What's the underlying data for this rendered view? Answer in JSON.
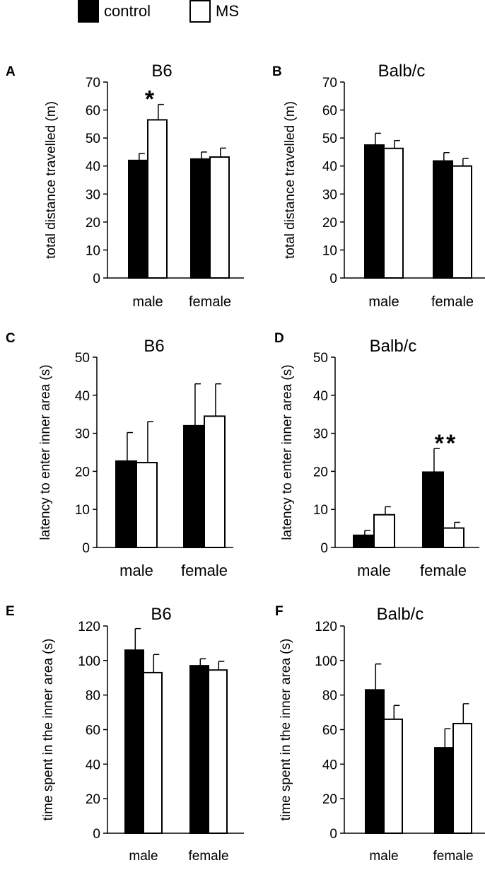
{
  "legend": {
    "control": {
      "label": "control",
      "color": "#000000"
    },
    "ms": {
      "label": "MS",
      "color": "#ffffff"
    }
  },
  "chart_data": [
    {
      "type": "bar",
      "panel_label": "A",
      "title": "B6",
      "ylabel": "total distance travelled (m)",
      "xlabel": "",
      "categories": [
        "male",
        "female"
      ],
      "ylim": [
        0,
        70
      ],
      "yticks": [
        0,
        10,
        20,
        30,
        40,
        50,
        60,
        70
      ],
      "series": [
        {
          "name": "control",
          "values": [
            42,
            42.5
          ],
          "errors": [
            2.5,
            2.5
          ]
        },
        {
          "name": "MS",
          "values": [
            56.5,
            43.2
          ],
          "errors": [
            5.5,
            3.2
          ]
        }
      ],
      "annotations": [
        {
          "text": "*",
          "category": "male"
        }
      ]
    },
    {
      "type": "bar",
      "panel_label": "B",
      "title": "Balb/c",
      "ylabel": "total distance travelled (m)",
      "xlabel": "",
      "categories": [
        "male",
        "female"
      ],
      "ylim": [
        0,
        70
      ],
      "yticks": [
        0,
        10,
        20,
        30,
        40,
        50,
        60,
        70
      ],
      "series": [
        {
          "name": "control",
          "values": [
            47.5,
            41.8
          ],
          "errors": [
            4.2,
            3.0
          ]
        },
        {
          "name": "MS",
          "values": [
            46.3,
            40.0
          ],
          "errors": [
            2.8,
            2.7
          ]
        }
      ],
      "annotations": []
    },
    {
      "type": "bar",
      "panel_label": "C",
      "title": "B6",
      "ylabel": "latency to enter inner area (s)",
      "xlabel": "",
      "categories": [
        "male",
        "female"
      ],
      "ylim": [
        0,
        50
      ],
      "yticks": [
        0,
        10,
        20,
        30,
        40,
        50
      ],
      "series": [
        {
          "name": "control",
          "values": [
            22.7,
            32.0
          ],
          "errors": [
            7.5,
            11.0
          ]
        },
        {
          "name": "MS",
          "values": [
            22.3,
            34.5
          ],
          "errors": [
            10.8,
            8.5
          ]
        }
      ],
      "annotations": []
    },
    {
      "type": "bar",
      "panel_label": "D",
      "title": "Balb/c",
      "ylabel": "latency to enter inner area (s)",
      "xlabel": "",
      "categories": [
        "male",
        "female"
      ],
      "ylim": [
        0,
        50
      ],
      "yticks": [
        0,
        10,
        20,
        30,
        40,
        50
      ],
      "series": [
        {
          "name": "control",
          "values": [
            3.2,
            19.8
          ],
          "errors": [
            1.3,
            6.2
          ]
        },
        {
          "name": "MS",
          "values": [
            8.6,
            5.1
          ],
          "errors": [
            2.1,
            1.5
          ]
        }
      ],
      "annotations": [
        {
          "text": "**",
          "category": "female"
        }
      ]
    },
    {
      "type": "bar",
      "panel_label": "E",
      "title": "B6",
      "ylabel": "time spent in the inner area (s)",
      "xlabel": "",
      "categories": [
        "male",
        "female"
      ],
      "ylim": [
        0,
        120
      ],
      "yticks": [
        0,
        20,
        40,
        60,
        80,
        100,
        120
      ],
      "series": [
        {
          "name": "control",
          "values": [
            106,
            97
          ],
          "errors": [
            12.5,
            4
          ]
        },
        {
          "name": "MS",
          "values": [
            93,
            94.5
          ],
          "errors": [
            10.5,
            5
          ]
        }
      ],
      "annotations": []
    },
    {
      "type": "bar",
      "panel_label": "F",
      "title": "Balb/c",
      "ylabel": "time spent in the inner area (s)",
      "xlabel": "",
      "categories": [
        "male",
        "female"
      ],
      "ylim": [
        0,
        120
      ],
      "yticks": [
        0,
        20,
        40,
        60,
        80,
        100,
        120
      ],
      "series": [
        {
          "name": "control",
          "values": [
            83,
            49.5
          ],
          "errors": [
            15,
            11
          ]
        },
        {
          "name": "MS",
          "values": [
            66,
            63.5
          ],
          "errors": [
            8,
            11.5
          ]
        }
      ],
      "annotations": []
    }
  ]
}
